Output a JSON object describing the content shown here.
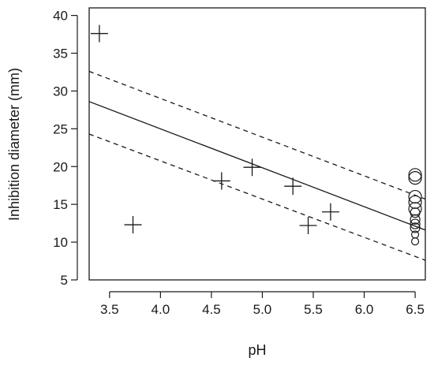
{
  "chart_data": {
    "type": "scatter",
    "title": "",
    "xlabel": "pH",
    "ylabel": "Inhibition diameter (mm)",
    "xlim": [
      3.3,
      6.6
    ],
    "ylim": [
      5,
      41
    ],
    "x_ticks": [
      3.5,
      4.0,
      4.5,
      5.0,
      5.5,
      6.0,
      6.5
    ],
    "x_tick_labels": [
      "3.5",
      "4.0",
      "4.5",
      "5.0",
      "5.5",
      "6.0",
      "6.5"
    ],
    "y_ticks": [
      5,
      10,
      15,
      20,
      25,
      30,
      35,
      40
    ],
    "y_tick_labels": [
      "5",
      "10",
      "15",
      "20",
      "25",
      "30",
      "35",
      "40"
    ],
    "grid": false,
    "series": [
      {
        "marker": "plus",
        "points": [
          {
            "x": 3.4,
            "y": 37.6
          },
          {
            "x": 3.73,
            "y": 12.3
          },
          {
            "x": 4.6,
            "y": 18.1
          },
          {
            "x": 4.9,
            "y": 19.9
          },
          {
            "x": 5.3,
            "y": 17.4
          },
          {
            "x": 5.45,
            "y": 12.2
          },
          {
            "x": 5.67,
            "y": 14.0
          }
        ]
      },
      {
        "marker": "circle",
        "points": [
          {
            "x": 6.5,
            "y": 18.9
          },
          {
            "x": 6.5,
            "y": 18.5
          },
          {
            "x": 6.5,
            "y": 16.0
          },
          {
            "x": 6.5,
            "y": 15.3
          },
          {
            "x": 6.5,
            "y": 14.4
          },
          {
            "x": 6.5,
            "y": 13.9
          },
          {
            "x": 6.5,
            "y": 13.0
          },
          {
            "x": 6.5,
            "y": 12.4
          },
          {
            "x": 6.5,
            "y": 11.9
          },
          {
            "x": 6.5,
            "y": 11.0
          },
          {
            "x": 6.5,
            "y": 10.1
          }
        ]
      }
    ],
    "lines": [
      {
        "style": "solid",
        "points": [
          {
            "x": 3.3,
            "y": 28.6
          },
          {
            "x": 6.6,
            "y": 11.6
          }
        ]
      },
      {
        "style": "dashed",
        "points": [
          {
            "x": 3.3,
            "y": 32.6
          },
          {
            "x": 6.6,
            "y": 15.7
          }
        ]
      },
      {
        "style": "dashed",
        "points": [
          {
            "x": 3.3,
            "y": 24.3
          },
          {
            "x": 6.6,
            "y": 7.6
          }
        ]
      }
    ]
  }
}
